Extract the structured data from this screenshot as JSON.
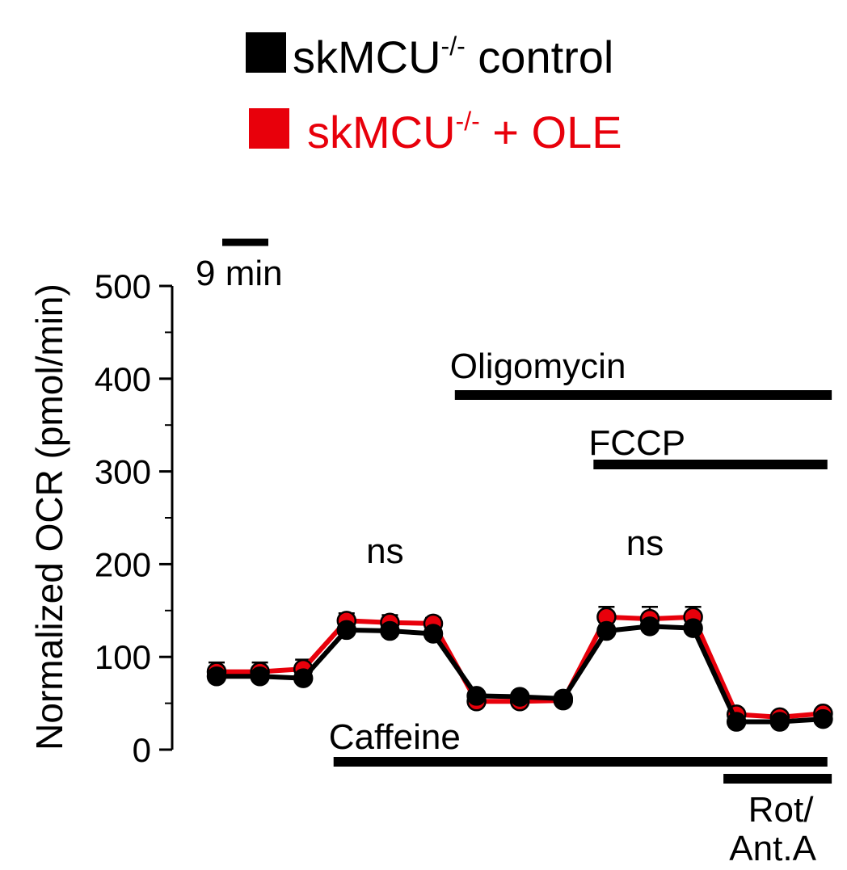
{
  "chart_data": {
    "type": "line",
    "ylabel": "Normalized OCR (pmol/min)",
    "ylim": [
      0,
      500
    ],
    "yticks": [
      0,
      100,
      200,
      300,
      400,
      500
    ],
    "legend": {
      "placement": "top-center",
      "superscript": "-/-"
    },
    "scale_bar_label": "9 min",
    "x": [
      1,
      2,
      3,
      4,
      5,
      6,
      7,
      8,
      9,
      10,
      11,
      12,
      13,
      14,
      15
    ],
    "series": [
      {
        "name": "skMCU",
        "suffix": " control",
        "color": "#000000",
        "values": [
          79,
          79,
          77,
          129,
          128,
          125,
          58,
          57,
          55,
          128,
          133,
          131,
          30,
          30,
          33
        ],
        "errors": [
          6,
          6,
          6,
          6,
          6,
          6,
          4,
          4,
          4,
          6,
          6,
          6,
          3,
          3,
          3
        ]
      },
      {
        "name": "skMCU",
        "suffix": " + OLE",
        "color": "#e8000b",
        "values": [
          84,
          84,
          87,
          139,
          137,
          136,
          52,
          52,
          53,
          143,
          141,
          143,
          38,
          35,
          39
        ],
        "errors": [
          10,
          10,
          10,
          8,
          8,
          6,
          4,
          4,
          4,
          11,
          13,
          11,
          3,
          3,
          3
        ]
      }
    ],
    "annotations": [
      {
        "text": "ns",
        "group": 2
      },
      {
        "text": "ns",
        "group": 4
      }
    ],
    "treatments": [
      {
        "label": "Oligomycin",
        "start_x": 6.5,
        "end_x": 15.2
      },
      {
        "label": "FCCP",
        "start_x": 9.7,
        "end_x": 15.1
      },
      {
        "label": "Caffeine",
        "start_x": 3.7,
        "end_x": 15.1
      },
      {
        "label": "Rot/",
        "label2": "Ant.A",
        "start_x": 12.7,
        "end_x": 15.2
      }
    ]
  }
}
